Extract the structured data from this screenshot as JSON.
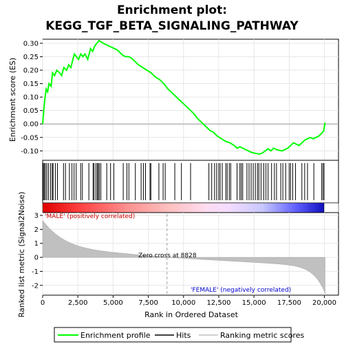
{
  "chart_data": {
    "type": "line",
    "title_line1": "Enrichment plot:",
    "title_line2": "KEGG_TGF_BETA_SIGNALING_PATHWAY",
    "xlabel": "Rank in Ordered Dataset",
    "ylabel_top": "Enrichment score (ES)",
    "ylabel_bottom": "Ranked list metric (Signal2Noise)",
    "xlim": [
      0,
      21000
    ],
    "x_ticks": [
      0,
      2500,
      5000,
      7500,
      10000,
      12500,
      15000,
      17500,
      20000
    ],
    "x_tick_labels": [
      "0",
      "2,500",
      "5,000",
      "7,500",
      "10,000",
      "12,500",
      "15,000",
      "17,500",
      "20,000"
    ],
    "es_ylim": [
      -0.135,
      0.315
    ],
    "es_ticks": [
      -0.1,
      -0.05,
      0.0,
      0.05,
      0.1,
      0.15,
      0.2,
      0.25,
      0.3
    ],
    "es_tick_labels": [
      "-0.10",
      "-0.05",
      "0.00",
      "0.05",
      "0.10",
      "0.15",
      "0.20",
      "0.25",
      "0.30"
    ],
    "metric_ylim": [
      -2.7,
      3.2
    ],
    "metric_ticks": [
      3,
      2,
      1,
      0,
      -1,
      -2
    ],
    "metric_tick_labels": [
      "3",
      "2",
      "1",
      "0",
      "-1",
      "-2"
    ],
    "enrichment_profile": {
      "x": [
        0,
        80,
        150,
        250,
        350,
        450,
        600,
        700,
        850,
        1000,
        1200,
        1350,
        1500,
        1700,
        1850,
        2000,
        2150,
        2250,
        2400,
        2550,
        2700,
        2850,
        3000,
        3200,
        3400,
        3550,
        3700,
        3850,
        4000,
        4150,
        4300,
        4500,
        4700,
        4900,
        5100,
        5300,
        5500,
        5700,
        5900,
        6100,
        6300,
        6500,
        6800,
        7100,
        7400,
        7700,
        8000,
        8300,
        8600,
        8900,
        9200,
        9500,
        9800,
        10100,
        10400,
        10700,
        11000,
        11300,
        11600,
        11900,
        12100,
        12400,
        12700,
        13000,
        13300,
        13600,
        13800,
        14000,
        14200,
        14400,
        14600,
        14800,
        15000,
        15200,
        15400,
        15600,
        15800,
        16000,
        16200,
        16400,
        16600,
        16800,
        17000,
        17200,
        17400,
        17600,
        17800,
        18000,
        18200,
        18400,
        18600,
        18800,
        19000,
        19200,
        19400,
        19600,
        19800,
        19950,
        20050
      ],
      "y": [
        0.0,
        0.05,
        0.09,
        0.13,
        0.12,
        0.15,
        0.14,
        0.19,
        0.18,
        0.2,
        0.19,
        0.18,
        0.21,
        0.2,
        0.22,
        0.21,
        0.24,
        0.26,
        0.25,
        0.24,
        0.26,
        0.25,
        0.26,
        0.24,
        0.28,
        0.27,
        0.29,
        0.3,
        0.31,
        0.305,
        0.3,
        0.295,
        0.29,
        0.285,
        0.28,
        0.275,
        0.265,
        0.255,
        0.25,
        0.25,
        0.245,
        0.235,
        0.22,
        0.21,
        0.2,
        0.19,
        0.175,
        0.165,
        0.15,
        0.13,
        0.115,
        0.1,
        0.085,
        0.07,
        0.055,
        0.04,
        0.02,
        0.005,
        -0.01,
        -0.025,
        -0.03,
        -0.045,
        -0.055,
        -0.065,
        -0.07,
        -0.08,
        -0.09,
        -0.085,
        -0.09,
        -0.095,
        -0.1,
        -0.105,
        -0.108,
        -0.11,
        -0.112,
        -0.108,
        -0.1,
        -0.092,
        -0.1,
        -0.09,
        -0.095,
        -0.098,
        -0.1,
        -0.095,
        -0.09,
        -0.08,
        -0.07,
        -0.075,
        -0.08,
        -0.07,
        -0.06,
        -0.055,
        -0.05,
        -0.055,
        -0.05,
        -0.045,
        -0.035,
        -0.025,
        0.005
      ]
    },
    "hits": [
      50,
      120,
      200,
      300,
      420,
      560,
      680,
      740,
      900,
      1050,
      1480,
      1620,
      1900,
      2080,
      2230,
      2380,
      2700,
      2820,
      3280,
      3580,
      3650,
      3780,
      3880,
      3950,
      4020,
      4130,
      4550,
      4820,
      5050,
      5720,
      5980,
      6120,
      6580,
      6990,
      7150,
      7300,
      7620,
      7680,
      8250,
      8550,
      8700,
      9380,
      9850,
      10500,
      11800,
      12000,
      12200,
      12350,
      12500,
      12600,
      12750,
      13000,
      13100,
      13250,
      13350,
      13800,
      14000,
      14100,
      14200,
      14500,
      14650,
      14800,
      14950,
      15100,
      15250,
      15350,
      15500,
      15700,
      15850,
      16000,
      16250,
      16450,
      16600,
      16900,
      17050,
      17250,
      17500,
      17600,
      17750,
      17950,
      18400,
      18600,
      18800,
      19250,
      19800,
      19900,
      19980
    ],
    "zero_cross_rank": 8828,
    "annotations": {
      "positive_label": "'MALE' (positively correlated)",
      "negative_label": "'FEMALE' (negatively correlated)",
      "zero_cross_label": "Zero cross at 8828"
    },
    "legend": {
      "items": [
        {
          "label": "Enrichment profile",
          "color": "#00ff00"
        },
        {
          "label": "Hits",
          "color": "#000000"
        },
        {
          "label": "Ranking metric scores",
          "color": "#c0c0c0"
        }
      ],
      "placement": "bottom"
    },
    "colors": {
      "profile": "#00ff00",
      "metric_fill": "#c0c0c0",
      "positive_text": "#cc0000",
      "negative_text": "#0000cc",
      "grid": "#e6e6e6",
      "zero_line": "#999999"
    },
    "grid": true
  }
}
